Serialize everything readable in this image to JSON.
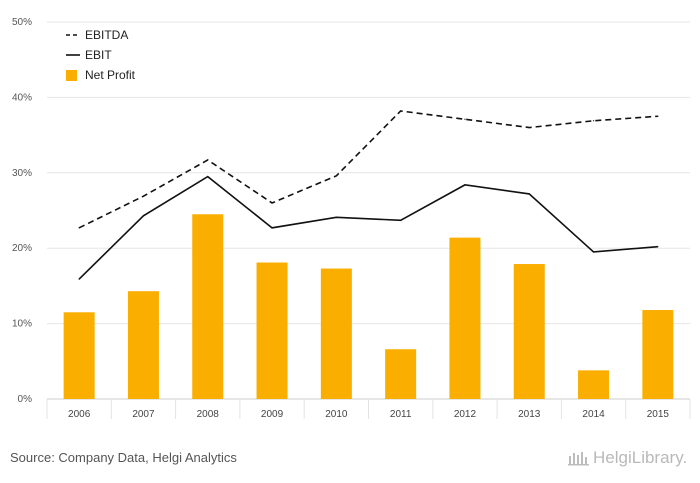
{
  "chart_data": {
    "type": "bar",
    "categories": [
      "2006",
      "2007",
      "2008",
      "2009",
      "2010",
      "2011",
      "2012",
      "2013",
      "2014",
      "2015"
    ],
    "series": [
      {
        "name": "EBITDA",
        "kind": "line",
        "style": "dashed",
        "values": [
          22.7,
          26.9,
          31.7,
          26.0,
          29.6,
          38.2,
          37.1,
          36.0,
          36.9,
          37.5
        ]
      },
      {
        "name": "EBIT",
        "kind": "line",
        "style": "solid",
        "values": [
          15.9,
          24.3,
          29.5,
          22.7,
          24.1,
          23.7,
          28.4,
          27.2,
          19.5,
          20.2
        ]
      },
      {
        "name": "Net Profit",
        "kind": "bar",
        "values": [
          11.5,
          14.3,
          24.5,
          18.1,
          17.3,
          6.6,
          21.4,
          17.9,
          3.8,
          11.8
        ]
      }
    ],
    "ylim": [
      0,
      50
    ],
    "yticks": [
      "0%",
      "10%",
      "20%",
      "30%",
      "40%",
      "50%"
    ],
    "grid": true,
    "legend_position": "top-left",
    "colors": {
      "bar": "#f9ae00",
      "line": "#111111",
      "grid": "#e6e6e6",
      "axis": "#cccccc"
    }
  },
  "footer": {
    "source": "Source: Company Data, Helgi Analytics",
    "brand": "HelgiLibrary."
  }
}
